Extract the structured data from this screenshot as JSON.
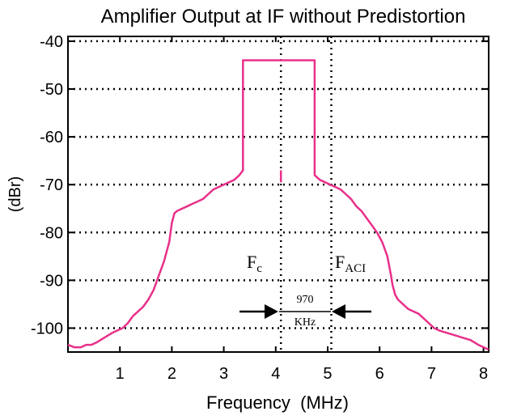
{
  "chart_data": {
    "type": "line",
    "title": "Amplifier Output at IF without Predistortion",
    "xlabel": "Frequency  (MHz)",
    "ylabel": "(dBr)",
    "xlim": [
      0,
      8.1
    ],
    "ylim": [
      -105,
      -39
    ],
    "xticks": [
      {
        "value": 1,
        "label": "1"
      },
      {
        "value": 2,
        "label": "2"
      },
      {
        "value": 3,
        "label": "3"
      },
      {
        "value": 4,
        "label": "4"
      },
      {
        "value": 5,
        "label": "5"
      },
      {
        "value": 6,
        "label": "6"
      },
      {
        "value": 7,
        "label": "7"
      },
      {
        "value": 8,
        "label": "8"
      }
    ],
    "yticks": [
      {
        "value": -40,
        "label": "-40"
      },
      {
        "value": -50,
        "label": "-50"
      },
      {
        "value": -60,
        "label": "-60"
      },
      {
        "value": -70,
        "label": "-70"
      },
      {
        "value": -80,
        "label": "-80"
      },
      {
        "value": -90,
        "label": "-90"
      },
      {
        "value": -100,
        "label": "-100"
      }
    ],
    "grid": "dotted horizontal",
    "series": [
      {
        "color": "#e8308a",
        "x": [
          0,
          0.12,
          0.25,
          0.35,
          0.45,
          0.55,
          0.7,
          0.85,
          0.95,
          1.05,
          1.15,
          1.25,
          1.35,
          1.45,
          1.55,
          1.65,
          1.75,
          1.85,
          1.95,
          2.0,
          2.05,
          2.1,
          2.2,
          2.3,
          2.4,
          2.5,
          2.6,
          2.7,
          2.8,
          2.9,
          3.0,
          3.1,
          3.2,
          3.3,
          3.37,
          3.37,
          4.75,
          4.75,
          4.85,
          4.95,
          5.05,
          5.15,
          5.25,
          5.35,
          5.45,
          5.55,
          5.65,
          5.75,
          5.85,
          5.95,
          6.05,
          6.15,
          6.22,
          6.25,
          6.3,
          6.35,
          6.45,
          6.55,
          6.65,
          6.75,
          6.85,
          6.95,
          7.05,
          7.15,
          7.3,
          7.45,
          7.6,
          7.75,
          7.9,
          8.0,
          8.1
        ],
        "y": [
          -103.5,
          -104,
          -104,
          -103.5,
          -103.5,
          -103,
          -102,
          -101,
          -100.5,
          -100,
          -99,
          -97.5,
          -96.5,
          -95.5,
          -94,
          -92,
          -89,
          -86,
          -82,
          -78,
          -76,
          -75.5,
          -75,
          -74.5,
          -74,
          -73.5,
          -73,
          -72,
          -71,
          -70.5,
          -70,
          -69.5,
          -69,
          -68,
          -67,
          -44,
          -44,
          -68,
          -69,
          -69.5,
          -70,
          -70.5,
          -71,
          -72,
          -73,
          -74.5,
          -75.5,
          -77,
          -78.5,
          -80,
          -82,
          -85,
          -89,
          -91,
          -93,
          -94,
          -95,
          -96,
          -96.5,
          -97,
          -98,
          -99,
          -100,
          -100.5,
          -101,
          -101.5,
          -102,
          -102.5,
          -103.5,
          -104,
          -104.5
        ]
      }
    ],
    "vlines": [
      {
        "x": 4.1,
        "style": "dotted"
      },
      {
        "x": 5.07,
        "style": "dotted"
      }
    ],
    "center_stub": {
      "x": 4.1,
      "y_from": -67,
      "y_to": -69.5
    },
    "annotations": {
      "fc_main": "F",
      "fc_sub": "c",
      "faci_main": "F",
      "faci_sub": "ACI",
      "spacing_value": "970",
      "spacing_unit": "KHz"
    }
  }
}
